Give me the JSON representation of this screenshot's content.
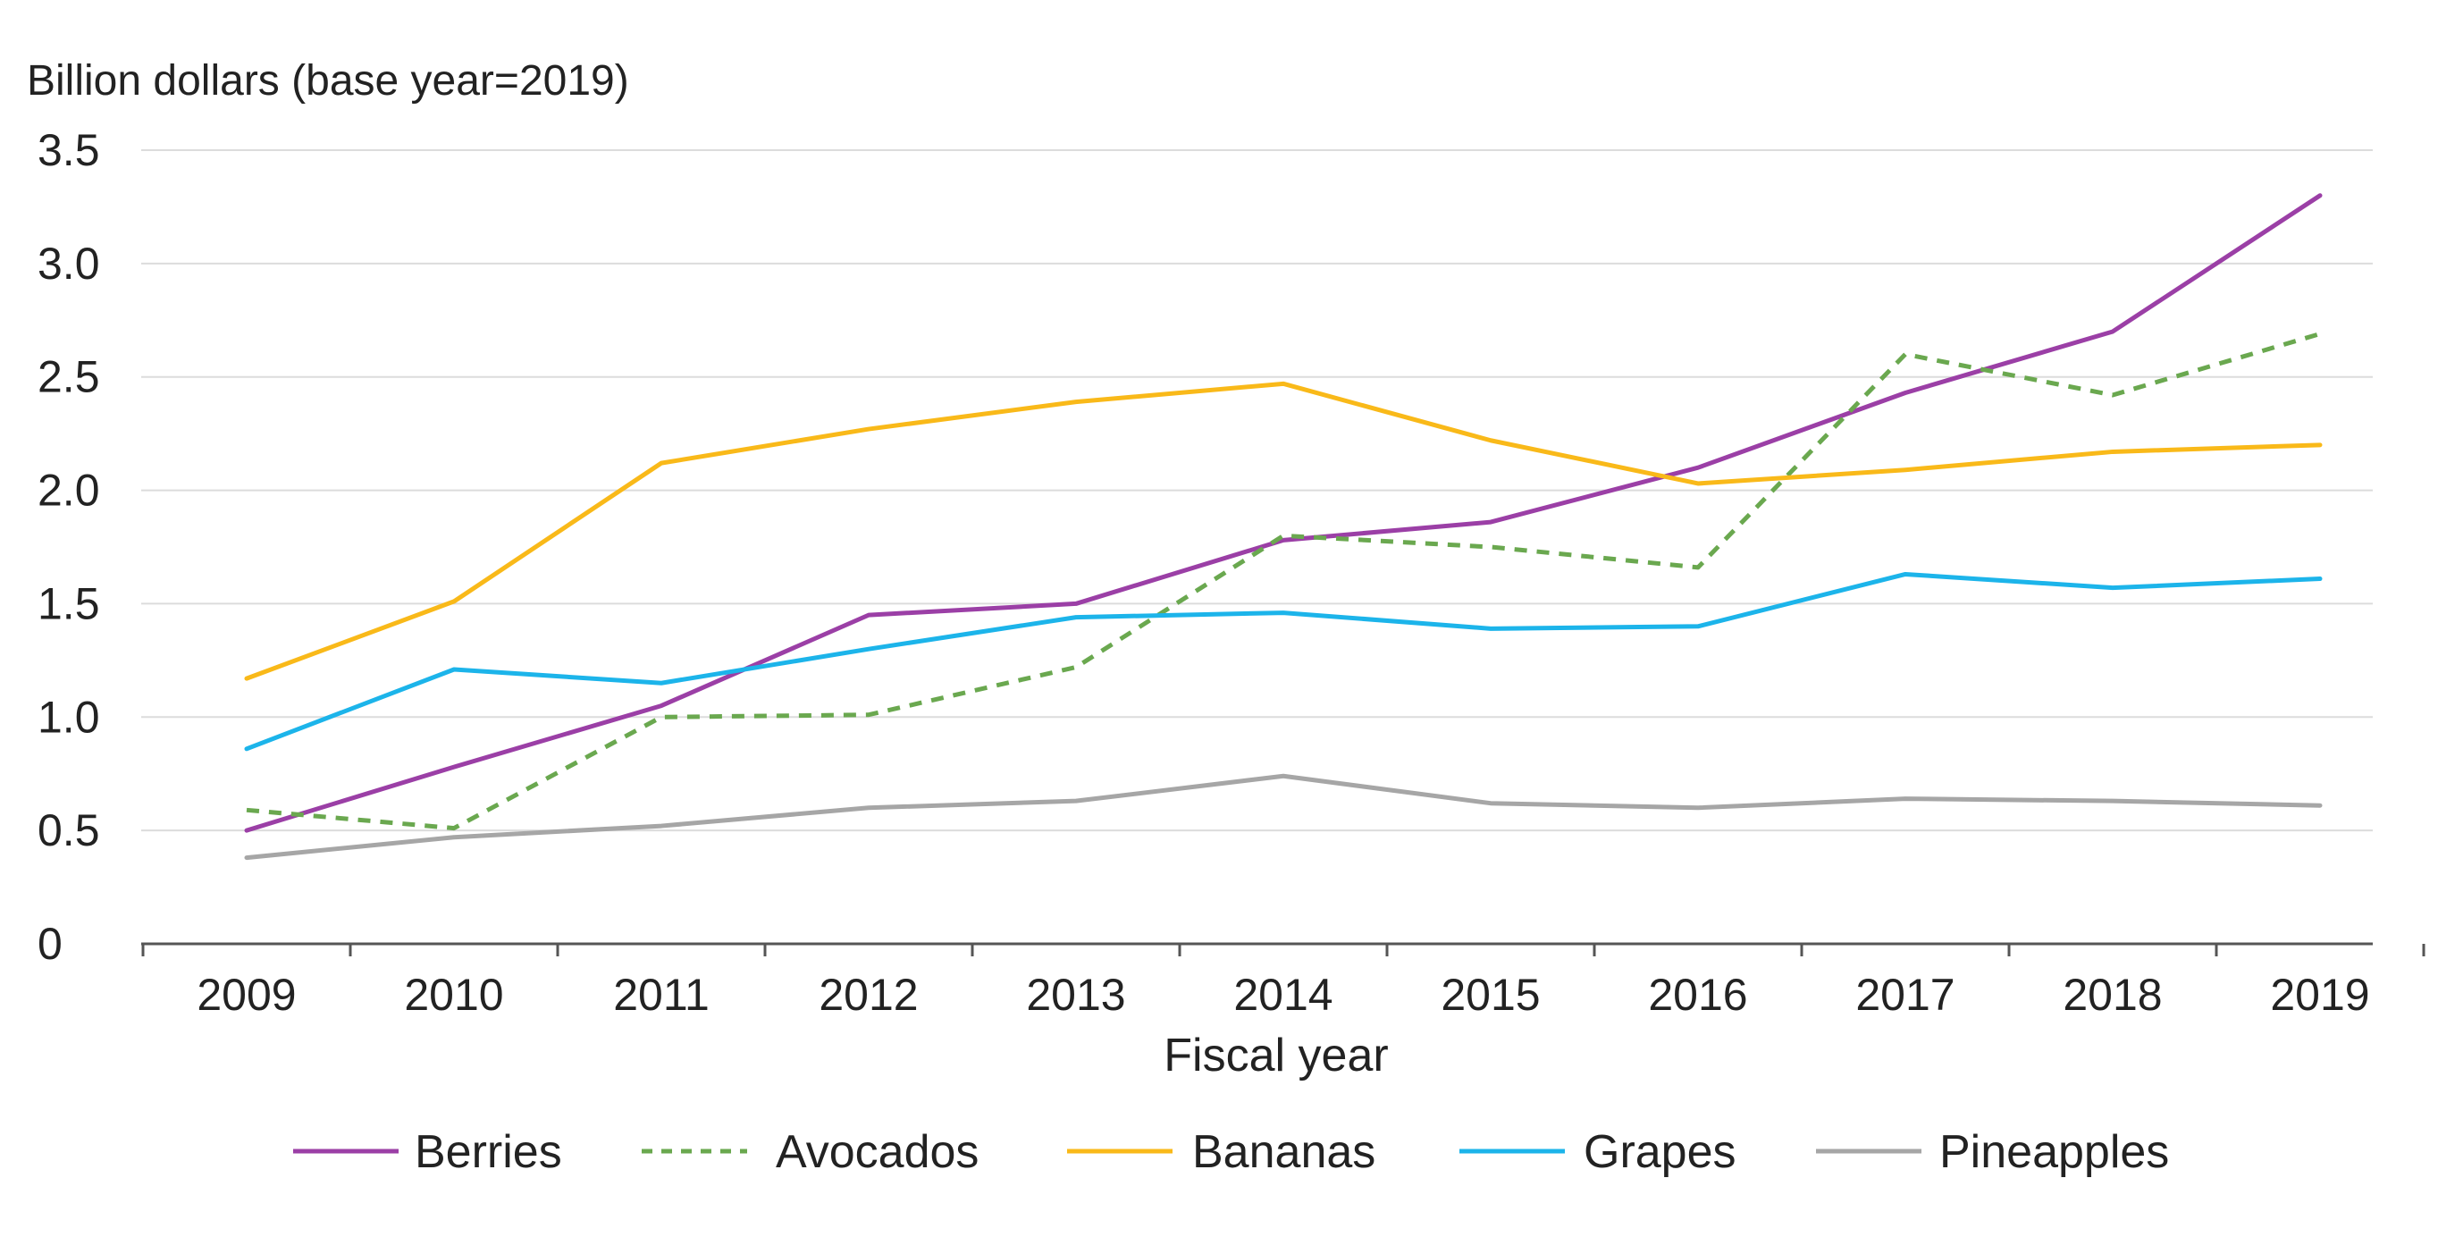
{
  "chart_data": {
    "type": "line",
    "title": "",
    "ylabel": "Billion dollars (base year=2019)",
    "xlabel": "Fiscal year",
    "categories": [
      "2009",
      "2010",
      "2011",
      "2012",
      "2013",
      "2014",
      "2015",
      "2016",
      "2017",
      "2018",
      "2019"
    ],
    "ylim": [
      0,
      3.5
    ],
    "yticks": [
      0,
      0.5,
      1.0,
      1.5,
      2.0,
      2.5,
      3.0,
      3.5
    ],
    "ytick_labels": [
      "0",
      "0.5",
      "1.0",
      "1.5",
      "2.0",
      "2.5",
      "3.0",
      "3.5"
    ],
    "grid": "horizontal",
    "legend_position": "bottom",
    "series": [
      {
        "name": "Berries",
        "color": "#9b3fa6",
        "style": "solid",
        "values": [
          0.5,
          0.78,
          1.05,
          1.45,
          1.5,
          1.78,
          1.86,
          2.1,
          2.43,
          2.7,
          3.3
        ]
      },
      {
        "name": "Avocados",
        "color": "#6aa84f",
        "style": "dotted",
        "values": [
          0.59,
          0.51,
          1.0,
          1.01,
          1.22,
          1.8,
          1.75,
          1.66,
          2.6,
          2.42,
          2.69
        ]
      },
      {
        "name": "Bananas",
        "color": "#f9b919",
        "style": "solid",
        "values": [
          1.17,
          1.51,
          2.12,
          2.27,
          2.39,
          2.47,
          2.22,
          2.03,
          2.09,
          2.17,
          2.2
        ]
      },
      {
        "name": "Grapes",
        "color": "#1cb4ea",
        "style": "solid",
        "values": [
          0.86,
          1.21,
          1.15,
          1.3,
          1.44,
          1.46,
          1.39,
          1.4,
          1.63,
          1.57,
          1.61
        ]
      },
      {
        "name": "Pineapples",
        "color": "#a6a6a6",
        "style": "solid",
        "values": [
          0.38,
          0.47,
          0.52,
          0.6,
          0.63,
          0.74,
          0.62,
          0.6,
          0.64,
          0.63,
          0.61
        ]
      }
    ]
  }
}
